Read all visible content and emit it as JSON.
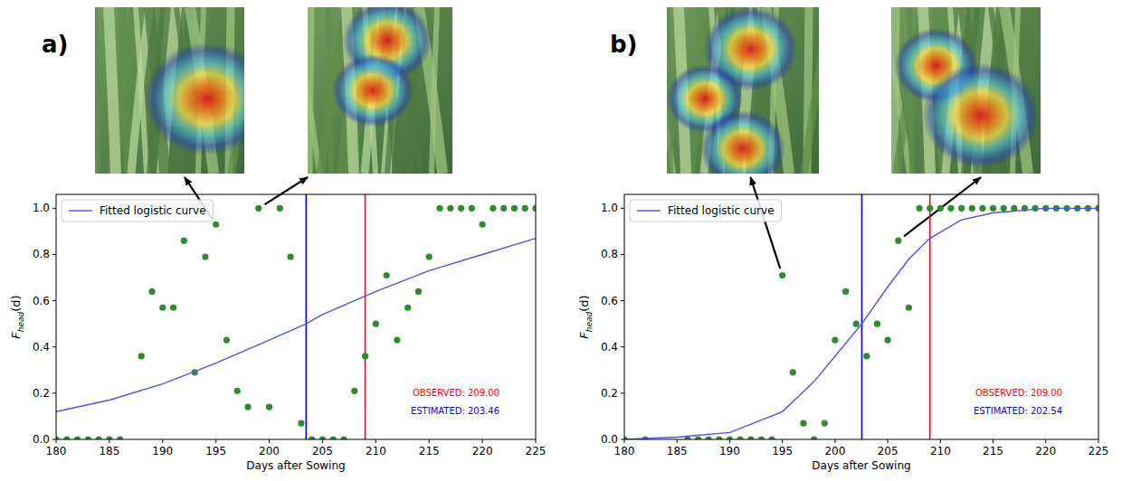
{
  "chart_data": [
    {
      "type": "scatter",
      "panel_label": "a)",
      "xlabel": "Days after Sowing",
      "ylabel": [
        "F",
        "head",
        "(d)"
      ],
      "xlim": [
        180,
        225
      ],
      "ylim": [
        0,
        1.06
      ],
      "xticks": [
        180,
        185,
        190,
        195,
        200,
        205,
        210,
        215,
        220,
        225
      ],
      "yticks": [
        {
          "value": 0,
          "label": "0.0"
        },
        {
          "value": 0.2,
          "label": "0.2"
        },
        {
          "value": 0.4,
          "label": "0.4"
        },
        {
          "value": 0.6,
          "label": "0.6"
        },
        {
          "value": 0.8,
          "label": "0.8"
        },
        {
          "value": 1,
          "label": "1.0"
        }
      ],
      "legend": "upper left",
      "series": [
        {
          "type": "scatter",
          "color": "#2e8b2e",
          "marker": "circle",
          "x": [
            180,
            181,
            182,
            183,
            184,
            185,
            186,
            188,
            189,
            190,
            191,
            192,
            193,
            194,
            195,
            196,
            197,
            198,
            199,
            200,
            201,
            202,
            203,
            204,
            205,
            206,
            207,
            208,
            209,
            210,
            211,
            212,
            213,
            214,
            215,
            216,
            217,
            218,
            219,
            220,
            221,
            222,
            223,
            224,
            225
          ],
          "values": [
            0,
            0,
            0,
            0,
            0,
            0,
            0,
            0.36,
            0.64,
            0.57,
            0.57,
            0.86,
            0.29,
            0.79,
            0.93,
            0.43,
            0.21,
            0.14,
            1.0,
            0.14,
            1.0,
            0.79,
            0.07,
            0,
            0,
            0,
            0,
            0.21,
            0.36,
            0.5,
            0.71,
            0.43,
            0.57,
            0.64,
            0.79,
            1.0,
            1.0,
            1.0,
            1.0,
            0.93,
            1.0,
            1.0,
            1.0,
            1.0,
            1.0
          ]
        },
        {
          "type": "line",
          "name": "Fitted logistic curve",
          "color": "#5050f0",
          "line_style": "solid",
          "x": [
            180,
            185,
            190,
            195,
            200,
            203.46,
            205,
            210,
            215,
            220,
            225
          ],
          "values": [
            0.12,
            0.17,
            0.24,
            0.33,
            0.43,
            0.5,
            0.54,
            0.64,
            0.73,
            0.8,
            0.87
          ]
        }
      ],
      "vlines": [
        {
          "x": 203.46,
          "color": "#0000ff"
        },
        {
          "x": 209,
          "color": "#ff0000"
        }
      ],
      "annotations": [
        {
          "text": "OBSERVED: 209.00",
          "color": "#ff0000"
        },
        {
          "text": "ESTIMATED: 203.46",
          "color": "#0000ff"
        }
      ]
    },
    {
      "type": "scatter",
      "panel_label": "b)",
      "xlabel": "Days after Sowing",
      "ylabel": [
        "F",
        "head",
        "(d)"
      ],
      "xlim": [
        180,
        225
      ],
      "ylim": [
        0,
        1.06
      ],
      "xticks": [
        180,
        185,
        190,
        195,
        200,
        205,
        210,
        215,
        220,
        225
      ],
      "yticks": [
        {
          "value": 0,
          "label": "0.0"
        },
        {
          "value": 0.2,
          "label": "0.2"
        },
        {
          "value": 0.4,
          "label": "0.4"
        },
        {
          "value": 0.6,
          "label": "0.6"
        },
        {
          "value": 0.8,
          "label": "0.8"
        },
        {
          "value": 1,
          "label": "1.0"
        }
      ],
      "legend": "upper left",
      "series": [
        {
          "type": "scatter",
          "color": "#2e8b2e",
          "marker": "circle",
          "x": [
            180,
            182,
            186,
            187,
            188,
            189,
            190,
            191,
            192,
            193,
            194,
            195,
            196,
            197,
            198,
            199,
            200,
            201,
            202,
            203,
            204,
            205,
            206,
            207,
            208,
            209,
            210,
            211,
            212,
            213,
            214,
            215,
            216,
            217,
            218,
            219,
            220,
            221,
            222,
            223,
            224,
            225
          ],
          "values": [
            0,
            0,
            0,
            0,
            0,
            0,
            0,
            0,
            0,
            0,
            0,
            0.71,
            0.29,
            0.07,
            0,
            0.07,
            0.43,
            0.64,
            0.5,
            0.36,
            0.5,
            0.43,
            0.86,
            0.57,
            1.0,
            1.0,
            1.0,
            1.0,
            1.0,
            1.0,
            1.0,
            1.0,
            1.0,
            1.0,
            1.0,
            1.0,
            1.0,
            1.0,
            1.0,
            1.0,
            1.0,
            1.0
          ]
        },
        {
          "type": "line",
          "name": "Fitted logistic curve",
          "color": "#5050f0",
          "line_style": "solid",
          "x": [
            180,
            185,
            190,
            195,
            198,
            200,
            202.54,
            205,
            207,
            209,
            212,
            215,
            220,
            225
          ],
          "values": [
            0.0,
            0.01,
            0.03,
            0.12,
            0.25,
            0.36,
            0.5,
            0.66,
            0.78,
            0.87,
            0.95,
            0.98,
            1.0,
            1.0
          ]
        }
      ],
      "vlines": [
        {
          "x": 202.54,
          "color": "#0000ff"
        },
        {
          "x": 209,
          "color": "#ff0000"
        }
      ],
      "annotations": [
        {
          "text": "OBSERVED: 209.00",
          "color": "#ff0000"
        },
        {
          "text": "ESTIMATED: 202.54",
          "color": "#0000ff"
        }
      ]
    }
  ]
}
